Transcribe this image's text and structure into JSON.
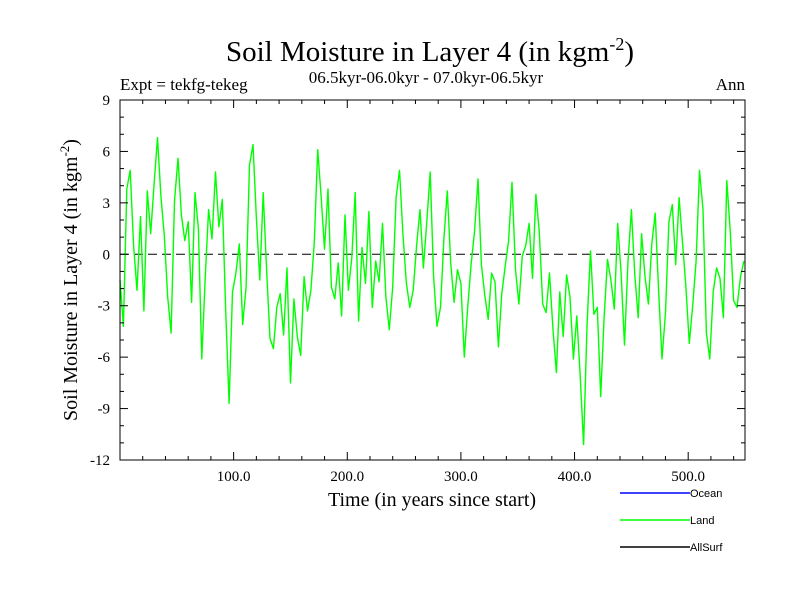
{
  "chart_data": {
    "type": "line",
    "title": "Soil Moisture in Layer 4 (in kgm",
    "title_sup": "-2",
    "title_close": ")",
    "subtitle_left": "Expt = tekfg-tekeg",
    "subtitle_center": "06.5kyr-06.0kyr - 07.0kyr-06.5kyr",
    "subtitle_right": "Ann",
    "xlabel": "Time (in years since start)",
    "ylabel": "Soil Moisture in Layer 4 (in kgm",
    "ylabel_sup": "-2",
    "ylabel_close": ")",
    "xlim": [
      0,
      550
    ],
    "ylim": [
      -12,
      9
    ],
    "xticks": [
      100,
      200,
      300,
      400,
      500
    ],
    "xtick_labels": [
      "100.0",
      "200.0",
      "300.0",
      "400.0",
      "500.0"
    ],
    "yticks": [
      9,
      6,
      3,
      0,
      -3,
      -6,
      -9,
      -12
    ],
    "ytick_labels": [
      "9",
      "6",
      "3",
      "0",
      "-3",
      "-6",
      "-9",
      "-12"
    ],
    "zero_line": true,
    "legend_position": "bottom-right",
    "legend": [
      {
        "name": "Ocean",
        "color": "#0000ff"
      },
      {
        "name": "Land",
        "color": "#00ff00"
      },
      {
        "name": "AllSurf",
        "color": "#000000"
      }
    ],
    "series": [
      {
        "name": "Land",
        "color": "#00ff00",
        "x": [
          0,
          3,
          6,
          9,
          12,
          15,
          18,
          21,
          24,
          27,
          30,
          33,
          36,
          39,
          42,
          45,
          48,
          51,
          54,
          57,
          60,
          63,
          66,
          69,
          72,
          75,
          78,
          81,
          84,
          87,
          90,
          93,
          96,
          99,
          102,
          105,
          108,
          111,
          114,
          117,
          120,
          123,
          126,
          129,
          132,
          135,
          138,
          141,
          144,
          147,
          150,
          153,
          156,
          159,
          162,
          165,
          168,
          171,
          174,
          177,
          180,
          183,
          186,
          189,
          192,
          195,
          198,
          201,
          204,
          207,
          210,
          213,
          216,
          219,
          222,
          225,
          228,
          231,
          234,
          237,
          240,
          243,
          246,
          249,
          252,
          255,
          258,
          261,
          264,
          267,
          270,
          273,
          276,
          279,
          282,
          285,
          288,
          291,
          294,
          297,
          300,
          303,
          306,
          309,
          312,
          315,
          318,
          321,
          324,
          327,
          330,
          333,
          336,
          339,
          342,
          345,
          348,
          351,
          354,
          357,
          360,
          363,
          366,
          369,
          372,
          375,
          378,
          381,
          384,
          387,
          390,
          393,
          396,
          399,
          402,
          405,
          408,
          411,
          414,
          417,
          420,
          423,
          426,
          429,
          432,
          435,
          438,
          441,
          444,
          447,
          450,
          453,
          456,
          459,
          462,
          465,
          468,
          471,
          474,
          477,
          480,
          483,
          486,
          489,
          492,
          495,
          498,
          501,
          504,
          507,
          510,
          513,
          516,
          519,
          522,
          525,
          528,
          531,
          534,
          537,
          540,
          543,
          546,
          549
        ],
        "values": [
          -1.5,
          -4.2,
          3.8,
          4.9,
          0.5,
          -2.1,
          2.2,
          -3.3,
          3.7,
          1.2,
          4.1,
          6.8,
          3.4,
          1.1,
          -2.5,
          -4.6,
          3.1,
          5.6,
          2.3,
          0.8,
          1.9,
          -2.8,
          3.6,
          1.5,
          -6.1,
          -1.4,
          2.6,
          0.9,
          4.8,
          1.6,
          3.2,
          -3.3,
          -8.7,
          -2.2,
          -1.1,
          0.6,
          -4.1,
          -1.9,
          5.2,
          6.4,
          2.1,
          -1.5,
          3.6,
          -0.9,
          -4.9,
          -5.5,
          -3.1,
          -2.3,
          -4.7,
          -0.8,
          -7.5,
          -2.6,
          -4.8,
          -5.9,
          -1.3,
          -3.3,
          -2.1,
          0.7,
          6.1,
          3.4,
          0.3,
          3.8,
          -1.9,
          -2.6,
          -0.5,
          -3.6,
          2.3,
          -2.1,
          -0.2,
          3.6,
          -3.9,
          0.4,
          -1.7,
          2.5,
          -3.1,
          -0.4,
          -1.6,
          1.8,
          -2.5,
          -4.4,
          -1.9,
          3.3,
          4.9,
          1.1,
          -1.7,
          -3.1,
          -2.1,
          0.5,
          2.6,
          -0.8,
          1.9,
          4.8,
          -1.3,
          -4.2,
          -3.1,
          0.9,
          3.7,
          -0.5,
          -2.8,
          -0.9,
          -1.7,
          -6.0,
          -3.1,
          -0.6,
          1.3,
          4.4,
          -0.6,
          -2.4,
          -3.8,
          -1.1,
          -1.6,
          -5.4,
          -2.3,
          -0.7,
          0.8,
          4.2,
          -0.9,
          -2.9,
          -0.1,
          0.5,
          1.8,
          -1.4,
          3.5,
          1.3,
          -2.9,
          -3.4,
          -1.1,
          -4.4,
          -6.9,
          -2.2,
          -4.8,
          -1.2,
          -2.5,
          -6.1,
          -3.6,
          -7.1,
          -11.1,
          -4.2,
          0.2,
          -3.5,
          -3.1,
          -8.3,
          -3.7,
          -0.3,
          -1.5,
          -3.2,
          1.8,
          -1.1,
          -5.3,
          -0.4,
          2.6,
          -1.2,
          -3.7,
          1.2,
          -1.3,
          -2.9,
          0.6,
          2.4,
          -2.1,
          -6.1,
          -3.4,
          1.9,
          2.9,
          -0.6,
          3.3,
          0.7,
          -1.9,
          -5.2,
          -3.0,
          -0.4,
          4.9,
          2.6,
          -4.6,
          -6.1,
          -2.2,
          -0.8,
          -1.4,
          -3.7,
          4.3,
          1.4,
          -2.7,
          -3.1,
          -1.3,
          -0.4
        ]
      }
    ]
  }
}
